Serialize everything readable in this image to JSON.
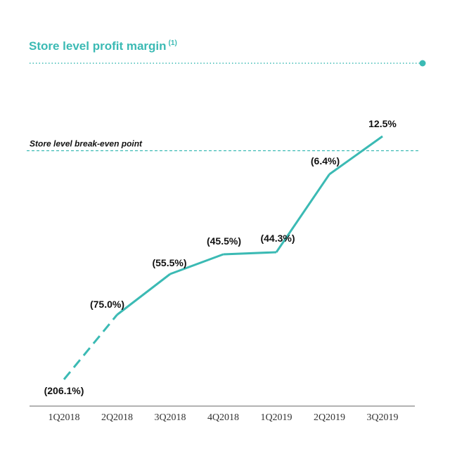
{
  "header": {
    "title": "Store level profit margin",
    "footnote_marker": "(1)",
    "rule_color": "#3bbab4"
  },
  "chart_data": {
    "type": "line",
    "title": "Store level profit margin",
    "xlabel": "",
    "ylabel": "",
    "categories": [
      "1Q2018",
      "2Q2018",
      "3Q2018",
      "4Q2018",
      "1Q2019",
      "2Q2019",
      "3Q2019"
    ],
    "series": [
      {
        "values": [
          -206.1,
          -75.0,
          -55.5,
          -45.5,
          -44.3,
          -6.4,
          12.5
        ],
        "labels": [
          "(206.1%)",
          "(75.0%)",
          "(55.5%)",
          "(45.5%)",
          "(44.3%)",
          "(6.4%)",
          "12.5%"
        ],
        "color": "#3bbab4",
        "dashed_segments": [
          0
        ]
      }
    ],
    "reference_line": {
      "label": "Store level break-even point",
      "value": 0
    },
    "grid": false,
    "legend": "none"
  }
}
